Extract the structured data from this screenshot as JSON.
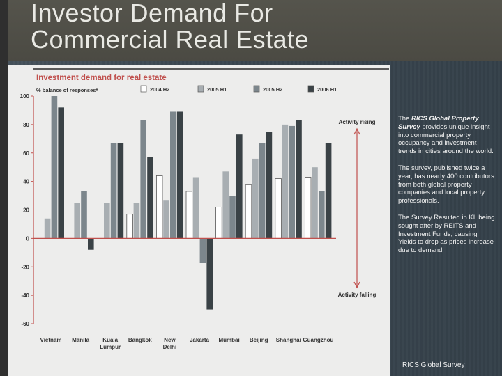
{
  "slide": {
    "title_line1": "Investor Demand For",
    "title_line2": "Commercial Real Estate"
  },
  "side_text": {
    "p1_pre": "The ",
    "p1_em": "RICS Global Property Survey",
    "p1_post": " provides unique insight into commercial property occupancy and investment trends in cities around the world.",
    "p2": "The survey, published twice a year, has nearly 400 contributors from both global property companies and local property professionals.",
    "p3": "The Survey Resulted in KL being sought after by REITS and Investment Funds, causing Yields to drop as prices increase due to demand"
  },
  "footer": "RICS Global Survey",
  "colors": {
    "s2004H2": "#ffffff",
    "s2005H1": "#a8aeb2",
    "s2005H2": "#7c868c",
    "s2006H1": "#3a4246",
    "axis": "#c0504d",
    "bar_outline": "#555555"
  },
  "chart_data": {
    "type": "bar",
    "title": "Investment demand for real estate",
    "ylabel": "% balance of responses*",
    "ylim": [
      -60,
      100
    ],
    "yticks": [
      100,
      80,
      60,
      40,
      20,
      0,
      -20,
      -40,
      -60
    ],
    "ytick_labels": [
      "100",
      "80",
      "60",
      "40",
      "20",
      "0",
      "-20",
      "-40",
      "-60"
    ],
    "categories": [
      "Vietnam",
      "Manila",
      "Kuala Lumpur",
      "Bangkok",
      "New Delhi",
      "Jakarta",
      "Mumbai",
      "Beijing",
      "Shanghai",
      "Guangzhou"
    ],
    "category_lines": [
      [
        "Vietnam"
      ],
      [
        "Manila"
      ],
      [
        "Kuala",
        "Lumpur"
      ],
      [
        "Bangkok"
      ],
      [
        "New",
        "Delhi"
      ],
      [
        "Jakarta"
      ],
      [
        "Mumbai"
      ],
      [
        "Beijing"
      ],
      [
        "Shanghai"
      ],
      [
        "Guangzhou"
      ]
    ],
    "series": [
      {
        "name": "2004 H2",
        "values": [
          null,
          null,
          null,
          17,
          44,
          33,
          22,
          38,
          42,
          43
        ]
      },
      {
        "name": "2005 H1",
        "values": [
          14,
          25,
          25,
          25,
          27,
          43,
          47,
          56,
          80,
          50
        ]
      },
      {
        "name": "2005 H2",
        "values": [
          100,
          33,
          67,
          83,
          89,
          -17,
          30,
          67,
          79,
          33
        ]
      },
      {
        "name": "2006 H1",
        "values": [
          92,
          -8,
          67,
          57,
          89,
          -50,
          73,
          75,
          83,
          67
        ]
      }
    ],
    "annotations": {
      "rising": "Activity rising",
      "falling": "Activity falling"
    }
  }
}
